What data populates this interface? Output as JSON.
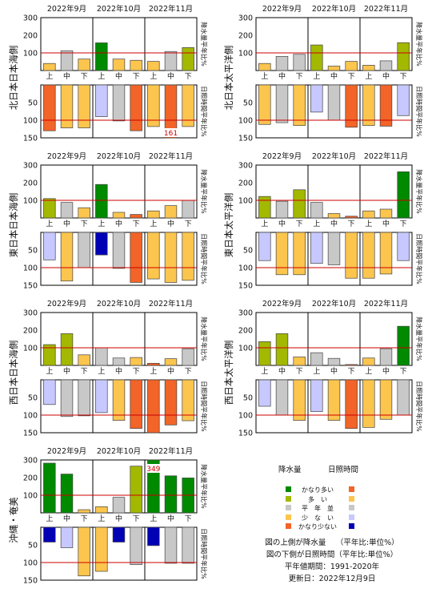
{
  "months": [
    "2022年9月",
    "2022年10月",
    "2022年11月"
  ],
  "dekads": [
    "上",
    "中",
    "下"
  ],
  "precip_side_label": "降水量平年比%",
  "sun_side_label": "日照時間平年比%",
  "upper_axis": {
    "min": 0,
    "max": 300,
    "ticks": [
      100,
      200,
      300
    ],
    "normal": 100
  },
  "lower_axis": {
    "min": 0,
    "max": 150,
    "ticks": [
      50,
      100,
      150
    ],
    "normal": 100
  },
  "colors": {
    "precip": {
      "かなり多い": "#008a00",
      "多い": "#a3b800",
      "平年並": "#c8c8c8",
      "少ない": "#fbc54e",
      "かなり少ない": "#f26428"
    },
    "sunshine": {
      "かなり多い": "#f26428",
      "多い": "#fbc54e",
      "平年並": "#c8c8c8",
      "少ない": "#c7c8ff",
      "かなり少ない": "#0000b5"
    },
    "normal_line": "#cc0000"
  },
  "chart_data": [
    {
      "type": "bar",
      "region": "北日本日本海側",
      "categories": [
        "9月上",
        "9月中",
        "9月下",
        "10月上",
        "10月中",
        "10月下",
        "11月上",
        "11月中",
        "11月下"
      ],
      "precip": [
        40,
        112,
        65,
        157,
        65,
        58,
        52,
        108,
        130
      ],
      "precip_class": [
        "少ない",
        "平年並",
        "少ない",
        "かなり多い",
        "少ない",
        "少ない",
        "少ない",
        "平年並",
        "多い"
      ],
      "sunshine": [
        130,
        122,
        122,
        90,
        102,
        130,
        118,
        161,
        118
      ],
      "sunshine_class": [
        "かなり多い",
        "多い",
        "多い",
        "少ない",
        "平年並",
        "かなり多い",
        "多い",
        "かなり多い",
        "多い"
      ],
      "value_labels": [
        {
          "index": 7,
          "part": "sunshine",
          "text": "161"
        }
      ]
    },
    {
      "type": "bar",
      "region": "北日本太平洋側",
      "categories": [
        "9月上",
        "9月中",
        "9月下",
        "10月上",
        "10月中",
        "10月下",
        "11月上",
        "11月中",
        "11月下"
      ],
      "precip": [
        40,
        80,
        92,
        145,
        25,
        52,
        30,
        55,
        158
      ],
      "precip_class": [
        "少ない",
        "平年並",
        "平年並",
        "多い",
        "少ない",
        "少ない",
        "少ない",
        "平年並",
        "多い"
      ],
      "sunshine": [
        112,
        107,
        115,
        77,
        100,
        120,
        115,
        117,
        87
      ],
      "sunshine_class": [
        "多い",
        "平年並",
        "多い",
        "少ない",
        "平年並",
        "かなり多い",
        "多い",
        "かなり多い",
        "少ない"
      ],
      "value_labels": []
    },
    {
      "type": "bar",
      "region": "東日本日本海側",
      "categories": [
        "9月上",
        "9月中",
        "9月下",
        "10月上",
        "10月中",
        "10月下",
        "11月上",
        "11月中",
        "11月下"
      ],
      "precip": [
        110,
        88,
        58,
        190,
        32,
        20,
        40,
        70,
        100
      ],
      "precip_class": [
        "多い",
        "平年並",
        "少ない",
        "かなり多い",
        "少ない",
        "かなり少ない",
        "少ない",
        "少ない",
        "平年並"
      ],
      "sunshine": [
        78,
        138,
        100,
        64,
        102,
        142,
        132,
        142,
        136
      ],
      "sunshine_class": [
        "少ない",
        "多い",
        "平年並",
        "かなり少ない",
        "平年並",
        "かなり多い",
        "多い",
        "多い",
        "多い"
      ],
      "value_labels": []
    },
    {
      "type": "bar",
      "region": "東日本太平洋側",
      "categories": [
        "9月上",
        "9月中",
        "9月下",
        "10月上",
        "10月中",
        "10月下",
        "11月上",
        "11月中",
        "11月下"
      ],
      "precip": [
        122,
        95,
        160,
        88,
        25,
        10,
        40,
        50,
        262
      ],
      "precip_class": [
        "多い",
        "平年並",
        "多い",
        "平年並",
        "少ない",
        "かなり少ない",
        "少ない",
        "少ない",
        "かなり多い"
      ],
      "sunshine": [
        80,
        120,
        120,
        88,
        92,
        130,
        130,
        118,
        80
      ],
      "sunshine_class": [
        "少ない",
        "多い",
        "多い",
        "少ない",
        "平年並",
        "多い",
        "多い",
        "多い",
        "少ない"
      ],
      "value_labels": []
    },
    {
      "type": "bar",
      "region": "西日本日本海側",
      "categories": [
        "9月上",
        "9月中",
        "9月下",
        "10月上",
        "10月中",
        "10月下",
        "11月上",
        "11月中",
        "11月下"
      ],
      "precip": [
        118,
        180,
        60,
        100,
        42,
        45,
        12,
        38,
        95
      ],
      "precip_class": [
        "多い",
        "多い",
        "少ない",
        "平年並",
        "平年並",
        "少ない",
        "かなり少ない",
        "少ない",
        "平年並"
      ],
      "sunshine": [
        70,
        104,
        102,
        93,
        115,
        138,
        150,
        128,
        116
      ],
      "sunshine_class": [
        "少ない",
        "平年並",
        "平年並",
        "少ない",
        "多い",
        "かなり多い",
        "かなり多い",
        "かなり多い",
        "多い"
      ],
      "value_labels": []
    },
    {
      "type": "bar",
      "region": "西日本太平洋側",
      "categories": [
        "9月上",
        "9月中",
        "9月下",
        "10月上",
        "10月中",
        "10月下",
        "11月上",
        "11月中",
        "11月下"
      ],
      "precip": [
        135,
        180,
        48,
        72,
        40,
        5,
        42,
        95,
        222
      ],
      "precip_class": [
        "多い",
        "多い",
        "少ない",
        "平年並",
        "平年並",
        "かなり少ない",
        "少ない",
        "平年並",
        "かなり多い"
      ],
      "sunshine": [
        75,
        100,
        115,
        90,
        115,
        138,
        135,
        112,
        100
      ],
      "sunshine_class": [
        "少ない",
        "平年並",
        "多い",
        "少ない",
        "多い",
        "かなり多い",
        "多い",
        "多い",
        "平年並"
      ],
      "value_labels": []
    },
    {
      "type": "bar",
      "region": "沖縄・奄美",
      "categories": [
        "9月上",
        "9月中",
        "9月下",
        "10月上",
        "10月中",
        "10月下",
        "11月上",
        "11月中",
        "11月下"
      ],
      "precip": [
        282,
        220,
        18,
        35,
        88,
        265,
        349,
        210,
        198
      ],
      "precip_class": [
        "かなり多い",
        "かなり多い",
        "少ない",
        "少ない",
        "平年並",
        "多い",
        "かなり多い",
        "かなり多い",
        "かなり多い"
      ],
      "sunshine": [
        42,
        58,
        138,
        125,
        42,
        106,
        52,
        102,
        102
      ],
      "sunshine_class": [
        "かなり少ない",
        "少ない",
        "多い",
        "多い",
        "かなり少ない",
        "平年並",
        "かなり少ない",
        "平年並",
        "平年並"
      ],
      "value_labels": [
        {
          "index": 6,
          "part": "precip",
          "text": "349"
        }
      ]
    }
  ],
  "legend": {
    "header_precip": "降水量",
    "header_sun": "日照時間",
    "classes": [
      "かなり多い",
      "多い",
      "平年並",
      "少ない",
      "かなり少ない"
    ],
    "class_labels": [
      "かなり多い",
      "多　い",
      "平　年　並",
      "少　な　い",
      "かなり少ない"
    ]
  },
  "notes": {
    "line1": "図の上側が降水量　 （平年比:単位%）",
    "line2": "図の下側が日照時間（平年比:単位%）",
    "line3": "平年値期間：1991-2020年",
    "line4": "更新日：2022年12月9日"
  }
}
